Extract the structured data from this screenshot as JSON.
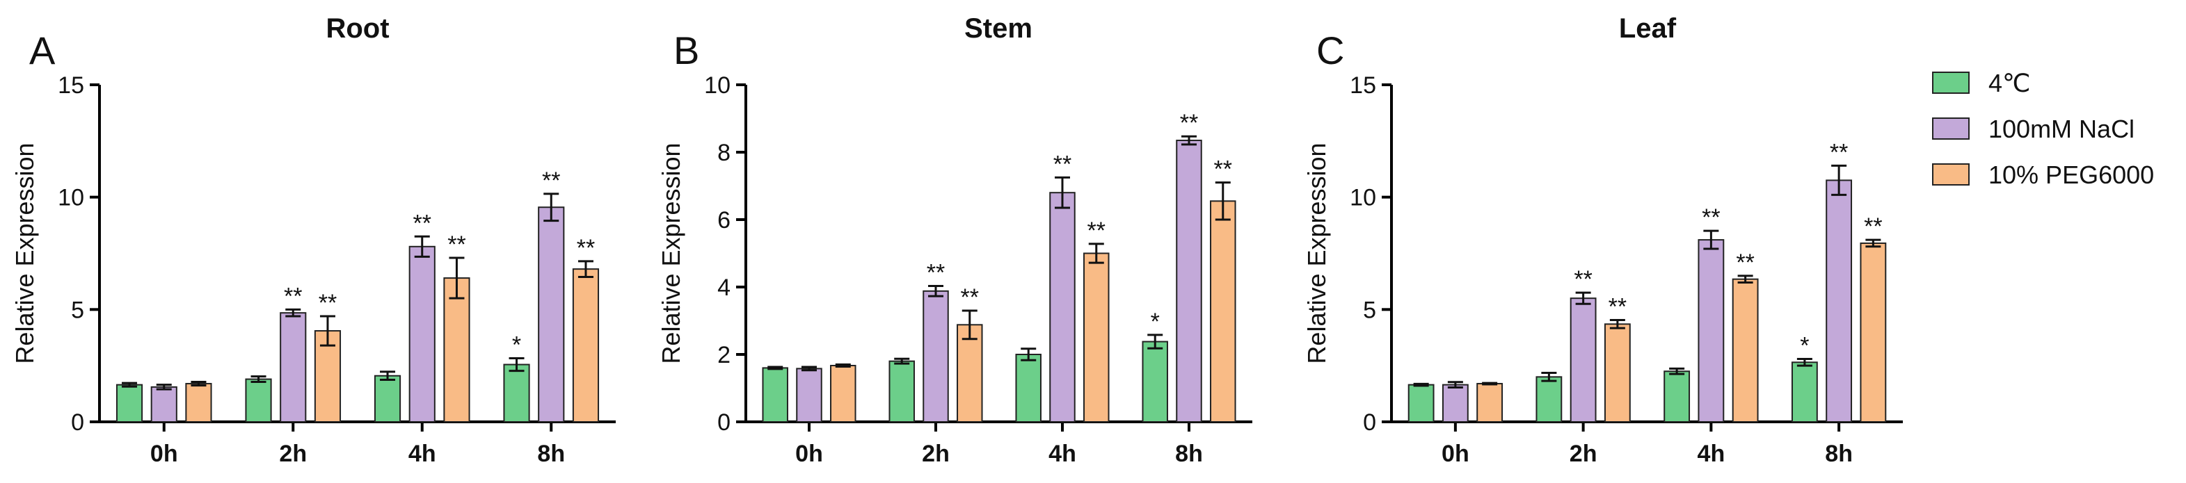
{
  "chart_data": [
    {
      "type": "bar",
      "panel_label": "A",
      "title": "Root",
      "xlabel": "",
      "ylabel": "Relative Expression",
      "ylim": [
        0,
        15
      ],
      "yticks": [
        "0",
        "5",
        "10",
        "15"
      ],
      "categories": [
        "0h",
        "2h",
        "4h",
        "8h"
      ],
      "series": [
        {
          "name": "4℃",
          "values": [
            1.65,
            1.9,
            2.05,
            2.55
          ],
          "errors": [
            0.08,
            0.12,
            0.18,
            0.28
          ],
          "sig": [
            "",
            "",
            "",
            "*"
          ]
        },
        {
          "name": "100mM NaCl",
          "values": [
            1.55,
            4.85,
            7.8,
            9.55
          ],
          "errors": [
            0.1,
            0.15,
            0.45,
            0.6
          ],
          "sig": [
            "",
            "**",
            "**",
            "**"
          ]
        },
        {
          "name": "10% PEG6000",
          "values": [
            1.7,
            4.05,
            6.4,
            6.8
          ],
          "errors": [
            0.08,
            0.65,
            0.9,
            0.35
          ],
          "sig": [
            "",
            "**",
            "**",
            "**"
          ]
        }
      ]
    },
    {
      "type": "bar",
      "panel_label": "B",
      "title": "Stem",
      "xlabel": "",
      "ylabel": "Relative Expression",
      "ylim": [
        0,
        10
      ],
      "yticks": [
        "0",
        "2",
        "4",
        "6",
        "8",
        "10"
      ],
      "categories": [
        "0h",
        "2h",
        "4h",
        "8h"
      ],
      "series": [
        {
          "name": "4℃",
          "values": [
            1.6,
            1.8,
            2.0,
            2.38
          ],
          "errors": [
            0.03,
            0.07,
            0.17,
            0.2
          ],
          "sig": [
            "",
            "",
            "",
            "*"
          ]
        },
        {
          "name": "100mM NaCl",
          "values": [
            1.58,
            3.88,
            6.8,
            8.35
          ],
          "errors": [
            0.05,
            0.15,
            0.45,
            0.12
          ],
          "sig": [
            "",
            "**",
            "**",
            "**"
          ]
        },
        {
          "name": "10% PEG6000",
          "values": [
            1.67,
            2.88,
            5.0,
            6.55
          ],
          "errors": [
            0.03,
            0.42,
            0.28,
            0.55
          ],
          "sig": [
            "",
            "**",
            "**",
            "**"
          ]
        }
      ]
    },
    {
      "type": "bar",
      "panel_label": "C",
      "title": "Leaf",
      "xlabel": "",
      "ylabel": "Relative Expression",
      "ylim": [
        0,
        15
      ],
      "yticks": [
        "0",
        "5",
        "10",
        "15"
      ],
      "categories": [
        "0h",
        "2h",
        "4h",
        "8h"
      ],
      "series": [
        {
          "name": "4℃",
          "values": [
            1.65,
            2.0,
            2.25,
            2.65
          ],
          "errors": [
            0.04,
            0.18,
            0.12,
            0.15
          ],
          "sig": [
            "",
            "",
            "",
            "*"
          ]
        },
        {
          "name": "100mM NaCl",
          "values": [
            1.65,
            5.5,
            8.1,
            10.75
          ],
          "errors": [
            0.12,
            0.25,
            0.4,
            0.65
          ],
          "sig": [
            "",
            "**",
            "**",
            "**"
          ]
        },
        {
          "name": "10% PEG6000",
          "values": [
            1.7,
            4.35,
            6.35,
            7.95
          ],
          "errors": [
            0.03,
            0.18,
            0.15,
            0.15
          ],
          "sig": [
            "",
            "**",
            "**",
            "**"
          ]
        }
      ]
    }
  ],
  "legend": {
    "items": [
      {
        "label": "4℃",
        "color": "#6ccf8a"
      },
      {
        "label": "100mM NaCl",
        "color": "#c3a9d9"
      },
      {
        "label": "10% PEG6000",
        "color": "#f9bb86"
      }
    ]
  },
  "colors": {
    "series": [
      "#6ccf8a",
      "#c3a9d9",
      "#f9bb86"
    ],
    "axis": "#000000",
    "text": "#111111"
  }
}
